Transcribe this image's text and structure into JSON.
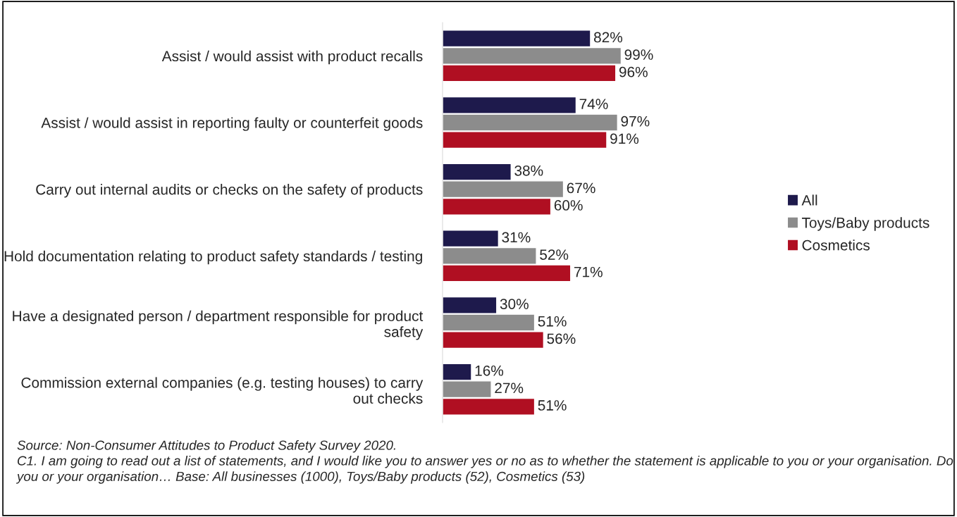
{
  "chart_data": {
    "type": "bar",
    "orientation": "horizontal",
    "categories": [
      "Assist / would assist with product recalls",
      "Assist / would assist in reporting faulty or counterfeit goods",
      "Carry out internal audits or checks on the safety of products",
      "Hold documentation relating to product safety standards / testing",
      "Have a designated person / department responsible for product safety",
      "Commission external companies (e.g. testing houses) to carry out checks"
    ],
    "series": [
      {
        "name": "All",
        "color": "#1e1a4c",
        "values": [
          82,
          74,
          38,
          31,
          30,
          16
        ],
        "value_labels": [
          "82%",
          "74%",
          "38%",
          "31%",
          "30%",
          "16%"
        ]
      },
      {
        "name": "Toys/Baby products",
        "color": "#8c8c8c",
        "values": [
          99,
          97,
          67,
          52,
          51,
          27
        ],
        "value_labels": [
          "99%",
          "97%",
          "67%",
          "52%",
          "51%",
          "27%"
        ]
      },
      {
        "name": "Cosmetics",
        "color": "#b00f22",
        "values": [
          96,
          91,
          60,
          71,
          56,
          51
        ],
        "value_labels": [
          "96%",
          "91%",
          "60%",
          "71%",
          "56%",
          "51%"
        ]
      }
    ],
    "xlim": [
      0,
      100
    ],
    "tick_labels": "y",
    "grid": false,
    "legend": "right",
    "annotations": [
      "Source: Non-Consumer Attitudes to Product Safety Survey 2020.",
      "C1. I am going to read out a list of statements, and I would like you to answer yes or no as to whether the statement is applicable to you or your organisation. Do you or your organisation… Base: All businesses (1000), Toys/Baby products (52), Cosmetics (53)"
    ]
  }
}
